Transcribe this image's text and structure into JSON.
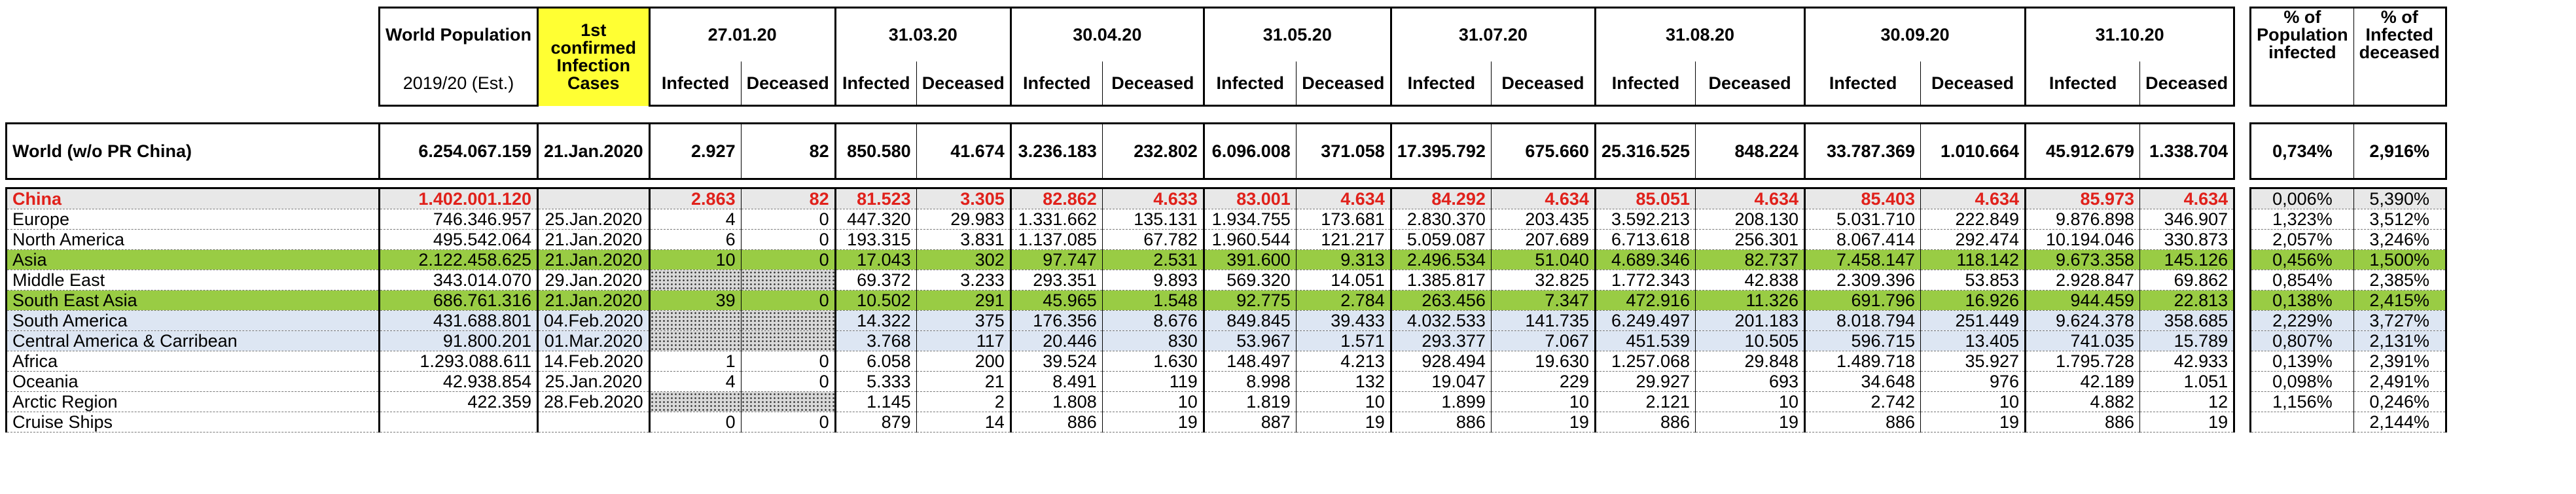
{
  "headers": {
    "world_population": "World Population",
    "world_population_sub": "2019/20 (Est.)",
    "first_case": "1st confirmed Infection Cases",
    "dates": [
      "27.01.20",
      "31.03.20",
      "30.04.20",
      "31.05.20",
      "31.07.20",
      "31.08.20",
      "30.09.20",
      "31.10.20"
    ],
    "infected": "Infected",
    "deceased": "Deceased",
    "pct_pop_infected": "% of Population infected",
    "pct_infected_deceased": "% of Infected deceased"
  },
  "world": {
    "region": "World (w/o PR China)",
    "population": "6.254.067.159",
    "first_case": "21.Jan.2020",
    "values": [
      "2.927",
      "82",
      "850.580",
      "41.674",
      "3.236.183",
      "232.802",
      "6.096.008",
      "371.058",
      "17.395.792",
      "675.660",
      "25.316.525",
      "848.224",
      "33.787.369",
      "1.010.664",
      "45.912.679",
      "1.338.704"
    ],
    "pct_infected": "0,734%",
    "pct_deceased": "2,916%"
  },
  "rows": [
    {
      "region": "China",
      "population": "1.402.001.120",
      "first_case": "",
      "values": [
        "2.863",
        "82",
        "81.523",
        "3.305",
        "82.862",
        "4.633",
        "83.001",
        "4.634",
        "84.292",
        "4.634",
        "85.051",
        "4.634",
        "85.403",
        "4.634",
        "85.973",
        "4.634"
      ],
      "pct_infected": "0,006%",
      "pct_deceased": "5,390%"
    },
    {
      "region": "Europe",
      "population": "746.346.957",
      "first_case": "25.Jan.2020",
      "values": [
        "4",
        "0",
        "447.320",
        "29.983",
        "1.331.662",
        "135.131",
        "1.934.755",
        "173.681",
        "2.830.370",
        "203.435",
        "3.592.213",
        "208.130",
        "5.031.710",
        "222.849",
        "9.876.898",
        "346.907"
      ],
      "pct_infected": "1,323%",
      "pct_deceased": "3,512%"
    },
    {
      "region": "North America",
      "population": "495.542.064",
      "first_case": "21.Jan.2020",
      "values": [
        "6",
        "0",
        "193.315",
        "3.831",
        "1.137.085",
        "67.782",
        "1.960.544",
        "121.217",
        "5.059.087",
        "207.689",
        "6.713.618",
        "256.301",
        "8.067.414",
        "292.474",
        "10.194.046",
        "330.873"
      ],
      "pct_infected": "2,057%",
      "pct_deceased": "3,246%"
    },
    {
      "region": "Asia",
      "population": "2.122.458.625",
      "first_case": "21.Jan.2020",
      "values": [
        "10",
        "0",
        "17.043",
        "302",
        "97.747",
        "2.531",
        "391.600",
        "9.313",
        "2.496.534",
        "51.040",
        "4.689.346",
        "82.737",
        "7.458.147",
        "118.142",
        "9.673.358",
        "145.126"
      ],
      "pct_infected": "0,456%",
      "pct_deceased": "1,500%"
    },
    {
      "region": "Middle East",
      "population": "343.014.070",
      "first_case": "29.Jan.2020",
      "values": [
        "",
        "",
        "69.372",
        "3.233",
        "293.351",
        "9.893",
        "569.320",
        "14.051",
        "1.385.817",
        "32.825",
        "1.772.343",
        "42.838",
        "2.309.396",
        "53.853",
        "2.928.847",
        "69.862"
      ],
      "pct_infected": "0,854%",
      "pct_deceased": "2,385%"
    },
    {
      "region": "South East Asia",
      "population": "686.761.316",
      "first_case": "21.Jan.2020",
      "values": [
        "39",
        "0",
        "10.502",
        "291",
        "45.965",
        "1.548",
        "92.775",
        "2.784",
        "263.456",
        "7.347",
        "472.916",
        "11.326",
        "691.796",
        "16.926",
        "944.459",
        "22.813"
      ],
      "pct_infected": "0,138%",
      "pct_deceased": "2,415%"
    },
    {
      "region": "South America",
      "population": "431.688.801",
      "first_case": "04.Feb.2020",
      "values": [
        "",
        "",
        "14.322",
        "375",
        "176.356",
        "8.676",
        "849.845",
        "39.433",
        "4.032.533",
        "141.735",
        "6.249.497",
        "201.183",
        "8.018.794",
        "251.449",
        "9.624.378",
        "358.685"
      ],
      "pct_infected": "2,229%",
      "pct_deceased": "3,727%"
    },
    {
      "region": "Central America & Carribean",
      "population": "91.800.201",
      "first_case": "01.Mar.2020",
      "values": [
        "",
        "",
        "3.768",
        "117",
        "20.446",
        "830",
        "53.967",
        "1.571",
        "293.377",
        "7.067",
        "451.539",
        "10.505",
        "596.715",
        "13.405",
        "741.035",
        "15.789"
      ],
      "pct_infected": "0,807%",
      "pct_deceased": "2,131%"
    },
    {
      "region": "Africa",
      "population": "1.293.088.611",
      "first_case": "14.Feb.2020",
      "values": [
        "1",
        "0",
        "6.058",
        "200",
        "39.524",
        "1.630",
        "148.497",
        "4.213",
        "928.494",
        "19.630",
        "1.257.068",
        "29.848",
        "1.489.718",
        "35.927",
        "1.795.728",
        "42.933"
      ],
      "pct_infected": "0,139%",
      "pct_deceased": "2,391%"
    },
    {
      "region": "Oceania",
      "population": "42.938.854",
      "first_case": "25.Jan.2020",
      "values": [
        "4",
        "0",
        "5.333",
        "21",
        "8.491",
        "119",
        "8.998",
        "132",
        "19.047",
        "229",
        "29.927",
        "693",
        "34.648",
        "976",
        "42.189",
        "1.051"
      ],
      "pct_infected": "0,098%",
      "pct_deceased": "2,491%"
    },
    {
      "region": "Arctic Region",
      "population": "422.359",
      "first_case": "28.Feb.2020",
      "values": [
        "",
        "",
        "1.145",
        "2",
        "1.808",
        "10",
        "1.819",
        "10",
        "1.899",
        "10",
        "2.121",
        "10",
        "2.742",
        "10",
        "4.882",
        "12"
      ],
      "pct_infected": "1,156%",
      "pct_deceased": "0,246%"
    },
    {
      "region": "Cruise Ships",
      "population": "",
      "first_case": "",
      "values": [
        "0",
        "0",
        "879",
        "14",
        "886",
        "19",
        "887",
        "19",
        "886",
        "19",
        "886",
        "19",
        "886",
        "19",
        "886",
        "19"
      ],
      "pct_infected": "",
      "pct_deceased": "2,144%"
    }
  ],
  "row_styles": [
    "red",
    "plain",
    "plain",
    "green",
    "plain",
    "green",
    "blue",
    "blue",
    "plain",
    "plain",
    "plain",
    "plain"
  ],
  "dotted_first_period": [
    false,
    false,
    false,
    false,
    true,
    false,
    true,
    true,
    false,
    false,
    true,
    false
  ],
  "colors": {
    "highlight_yellow": "#ffff33",
    "china_red": "#e0211b",
    "asia_green": "#99cc44",
    "americas_blue": "#dde6f3",
    "china_row_grey": "#e8e8e8"
  }
}
